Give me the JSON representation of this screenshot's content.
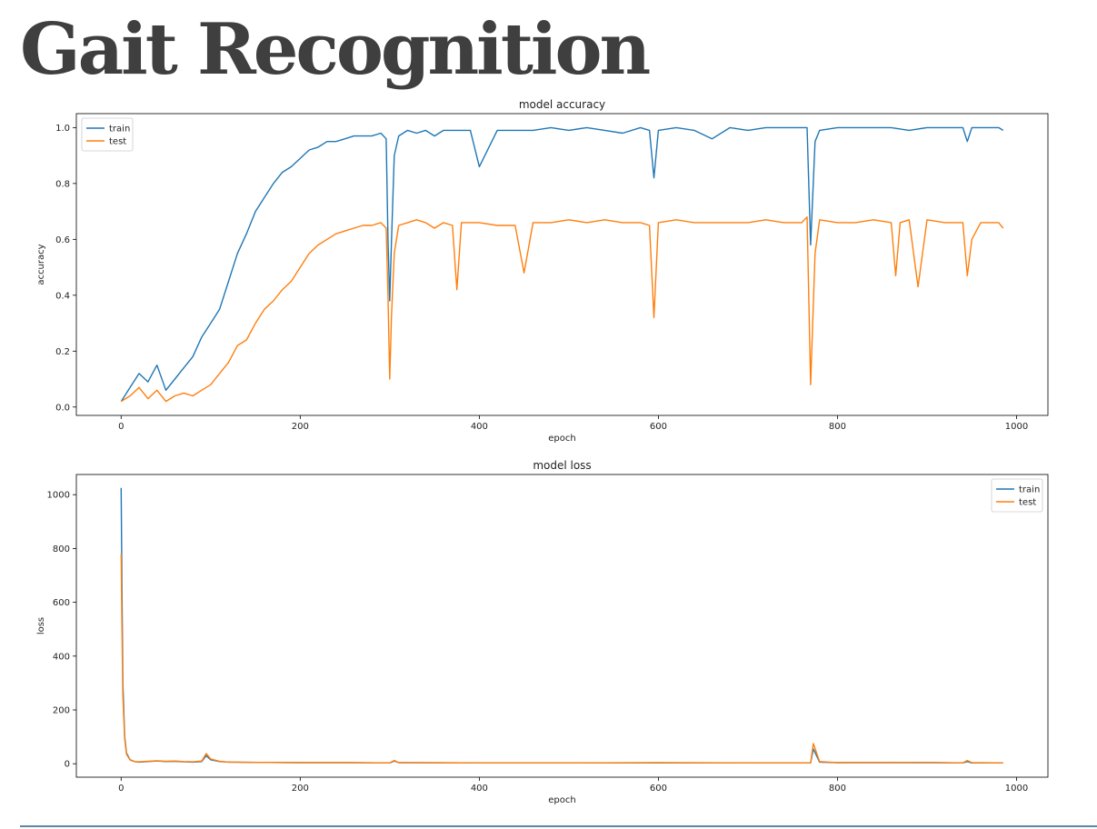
{
  "slide": {
    "title": "Gait Recognition"
  },
  "chart_data": [
    {
      "type": "line",
      "title": "model accuracy",
      "xlabel": "epoch",
      "ylabel": "accuracy",
      "xlim": [
        -50,
        1035
      ],
      "ylim": [
        -0.03,
        1.05
      ],
      "xticks": [
        0,
        200,
        400,
        600,
        800,
        1000
      ],
      "yticks": [
        0.0,
        0.2,
        0.4,
        0.6,
        0.8,
        1.0
      ],
      "ytick_labels": [
        "0.0",
        "0.2",
        "0.4",
        "0.6",
        "0.8",
        "1.0"
      ],
      "grid": false,
      "legend": "top-left",
      "series": [
        {
          "name": "train",
          "color": "#1f77b4",
          "x": [
            0,
            10,
            20,
            30,
            40,
            50,
            60,
            70,
            80,
            90,
            100,
            110,
            120,
            130,
            140,
            150,
            160,
            170,
            180,
            190,
            200,
            210,
            220,
            230,
            240,
            250,
            260,
            270,
            280,
            290,
            296,
            298,
            300,
            302,
            305,
            310,
            320,
            330,
            340,
            350,
            360,
            380,
            390,
            400,
            420,
            440,
            460,
            480,
            500,
            520,
            540,
            560,
            580,
            590,
            595,
            600,
            620,
            640,
            660,
            680,
            700,
            720,
            740,
            760,
            766,
            770,
            775,
            780,
            800,
            820,
            840,
            860,
            880,
            900,
            920,
            940,
            945,
            950,
            960,
            980,
            985
          ],
          "y": [
            0.02,
            0.07,
            0.12,
            0.09,
            0.15,
            0.06,
            0.1,
            0.14,
            0.18,
            0.25,
            0.3,
            0.35,
            0.45,
            0.55,
            0.62,
            0.7,
            0.75,
            0.8,
            0.84,
            0.86,
            0.89,
            0.92,
            0.93,
            0.95,
            0.95,
            0.96,
            0.97,
            0.97,
            0.97,
            0.98,
            0.96,
            0.6,
            0.38,
            0.6,
            0.9,
            0.97,
            0.99,
            0.98,
            0.99,
            0.97,
            0.99,
            0.99,
            0.99,
            0.86,
            0.99,
            0.99,
            0.99,
            1.0,
            0.99,
            1.0,
            0.99,
            0.98,
            1.0,
            0.99,
            0.82,
            0.99,
            1.0,
            0.99,
            0.96,
            1.0,
            0.99,
            1.0,
            1.0,
            1.0,
            1.0,
            0.58,
            0.95,
            0.99,
            1.0,
            1.0,
            1.0,
            1.0,
            0.99,
            1.0,
            1.0,
            1.0,
            0.95,
            1.0,
            1.0,
            1.0,
            0.99
          ]
        },
        {
          "name": "test",
          "color": "#ff7f0e",
          "x": [
            0,
            10,
            20,
            30,
            40,
            50,
            60,
            70,
            80,
            90,
            100,
            110,
            120,
            130,
            140,
            150,
            160,
            170,
            180,
            190,
            200,
            210,
            220,
            230,
            240,
            250,
            260,
            270,
            280,
            290,
            296,
            298,
            300,
            302,
            305,
            310,
            320,
            330,
            340,
            350,
            360,
            370,
            375,
            380,
            400,
            420,
            440,
            450,
            460,
            480,
            500,
            520,
            540,
            560,
            580,
            590,
            595,
            600,
            620,
            640,
            660,
            680,
            700,
            720,
            740,
            760,
            766,
            770,
            775,
            780,
            800,
            820,
            840,
            860,
            865,
            870,
            880,
            890,
            900,
            920,
            940,
            945,
            950,
            960,
            980,
            985
          ],
          "y": [
            0.02,
            0.04,
            0.07,
            0.03,
            0.06,
            0.02,
            0.04,
            0.05,
            0.04,
            0.06,
            0.08,
            0.12,
            0.16,
            0.22,
            0.24,
            0.3,
            0.35,
            0.38,
            0.42,
            0.45,
            0.5,
            0.55,
            0.58,
            0.6,
            0.62,
            0.63,
            0.64,
            0.65,
            0.65,
            0.66,
            0.64,
            0.4,
            0.1,
            0.33,
            0.55,
            0.65,
            0.66,
            0.67,
            0.66,
            0.64,
            0.66,
            0.65,
            0.42,
            0.66,
            0.66,
            0.65,
            0.65,
            0.48,
            0.66,
            0.66,
            0.67,
            0.66,
            0.67,
            0.66,
            0.66,
            0.65,
            0.32,
            0.66,
            0.67,
            0.66,
            0.66,
            0.66,
            0.66,
            0.67,
            0.66,
            0.66,
            0.68,
            0.08,
            0.55,
            0.67,
            0.66,
            0.66,
            0.67,
            0.66,
            0.47,
            0.66,
            0.67,
            0.43,
            0.67,
            0.66,
            0.66,
            0.47,
            0.6,
            0.66,
            0.66,
            0.64
          ]
        }
      ]
    },
    {
      "type": "line",
      "title": "model loss",
      "xlabel": "epoch",
      "ylabel": "loss",
      "xlim": [
        -50,
        1035
      ],
      "ylim": [
        -50,
        1075
      ],
      "xticks": [
        0,
        200,
        400,
        600,
        800,
        1000
      ],
      "yticks": [
        0,
        200,
        400,
        600,
        800,
        1000
      ],
      "ytick_labels": [
        "0",
        "200",
        "400",
        "600",
        "800",
        "1000"
      ],
      "grid": false,
      "legend": "top-right",
      "series": [
        {
          "name": "train",
          "color": "#1f77b4",
          "x": [
            0,
            1,
            2,
            4,
            6,
            10,
            15,
            20,
            30,
            40,
            50,
            60,
            70,
            80,
            90,
            95,
            100,
            110,
            120,
            150,
            200,
            250,
            300,
            305,
            310,
            400,
            500,
            600,
            700,
            770,
            773,
            780,
            800,
            900,
            940,
            945,
            950,
            985
          ],
          "y": [
            1025,
            650,
            300,
            100,
            40,
            15,
            8,
            6,
            8,
            10,
            8,
            9,
            7,
            6,
            8,
            30,
            15,
            8,
            6,
            5,
            4,
            4,
            3,
            10,
            4,
            3,
            3,
            3,
            3,
            3,
            55,
            6,
            4,
            4,
            3,
            8,
            3,
            3
          ]
        },
        {
          "name": "test",
          "color": "#ff7f0e",
          "x": [
            0,
            1,
            2,
            4,
            6,
            10,
            15,
            20,
            30,
            40,
            50,
            60,
            70,
            80,
            90,
            95,
            100,
            110,
            120,
            150,
            200,
            250,
            300,
            305,
            310,
            400,
            500,
            600,
            700,
            770,
            773,
            780,
            800,
            900,
            940,
            945,
            950,
            985
          ],
          "y": [
            780,
            500,
            250,
            90,
            35,
            14,
            8,
            7,
            9,
            11,
            9,
            10,
            8,
            7,
            10,
            38,
            18,
            9,
            6,
            5,
            4,
            4,
            3,
            12,
            4,
            3,
            3,
            4,
            3,
            3,
            75,
            8,
            4,
            5,
            3,
            12,
            4,
            3
          ]
        }
      ]
    }
  ]
}
